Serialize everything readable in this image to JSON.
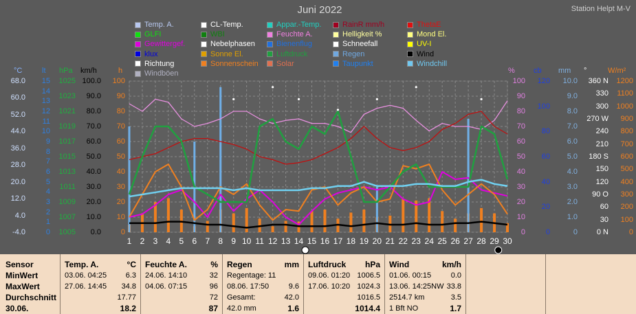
{
  "header": {
    "title": "Juni 2022",
    "station": "Station Helpt M-V"
  },
  "legend": [
    {
      "label": "Temp. A.",
      "color": "#b8c8f0"
    },
    {
      "label": "CL-Temp.",
      "color": "#ffffff"
    },
    {
      "label": "Appar.-Temp.",
      "color": "#20d0c0"
    },
    {
      "label": "RainR mm/h",
      "color": "#a00020"
    },
    {
      "label": "ThetaE",
      "color": "#e01010"
    },
    {
      "label": "GLFI",
      "color": "#10e010"
    },
    {
      "label": "WBI",
      "color": "#108010"
    },
    {
      "label": "Feuchte A.",
      "color": "#f080e0"
    },
    {
      "label": "Helligkeit %",
      "color": "#ffffa0"
    },
    {
      "label": "Mond El.",
      "color": "#ffff80"
    },
    {
      "label": "Gewittergef.",
      "color": "#e000e0"
    },
    {
      "label": "Nebelphasen",
      "color": "#ffffff"
    },
    {
      "label": "Bienenflug",
      "color": "#2070e0"
    },
    {
      "label": "Schneefall",
      "color": "#ffffff"
    },
    {
      "label": "UV-I",
      "color": "#ffff00"
    },
    {
      "label": "klux",
      "color": "#0000e0"
    },
    {
      "label": "Sonne El.",
      "color": "#e0a000"
    },
    {
      "label": "Luftdruck",
      "color": "#20a040"
    },
    {
      "label": "Regen",
      "color": "#70a8e0"
    },
    {
      "label": "Wind",
      "color": "#000000"
    },
    {
      "label": "Richtung",
      "color": "#ffffff"
    },
    {
      "label": "Sonnenschein",
      "color": "#f08020"
    },
    {
      "label": "Solar",
      "color": "#e07050"
    },
    {
      "label": "Taupunkt",
      "color": "#2080f0"
    },
    {
      "label": "Windchill",
      "color": "#70c8f0"
    },
    {
      "label": "Windböen",
      "color": "#b0b0c0"
    }
  ],
  "axes": {
    "units": [
      "°C",
      "lt",
      "hPa",
      "km/h",
      "h",
      "%",
      "cb",
      "mm",
      "°",
      "W/m²"
    ],
    "temp": [
      "68.0",
      "60.0",
      "52.0",
      "44.0",
      "36.0",
      "28.0",
      "20.0",
      "12.0",
      "4.0",
      "-4.0"
    ],
    "lt": [
      "15",
      "14",
      "13",
      "12",
      "11",
      "10",
      "9",
      "8",
      "7",
      "6",
      "5",
      "4",
      "3",
      "2",
      "1",
      "0"
    ],
    "hpa": [
      "1025",
      "1023",
      "1021",
      "1019",
      "1017",
      "1015",
      "1013",
      "1011",
      "1009",
      "1007",
      "1005"
    ],
    "kmh": [
      "100.0",
      "90.0",
      "80.0",
      "70.0",
      "60.0",
      "50.0",
      "40.0",
      "30.0",
      "20.0",
      "10.0",
      "0.0"
    ],
    "h": [
      "100",
      "90",
      "80",
      "70",
      "60",
      "50",
      "40",
      "30",
      "20",
      "10",
      "0"
    ],
    "pct": [
      "100",
      "90",
      "80",
      "70",
      "60",
      "50",
      "40",
      "30",
      "20",
      "10",
      "0"
    ],
    "cb": [
      "120",
      "100",
      "80",
      "60",
      "40",
      "20",
      "0"
    ],
    "mm": [
      "10.0",
      "9.0",
      "8.0",
      "7.0",
      "6.0",
      "5.0",
      "4.0",
      "3.0",
      "2.0",
      "1.0",
      "0"
    ],
    "deg": [
      "360 N",
      "330",
      "300",
      "270 W",
      "240",
      "210",
      "180 S",
      "150",
      "120",
      "90  O",
      "60",
      "30",
      "0    N"
    ],
    "wm2": [
      "1200",
      "1100",
      "1000",
      "900",
      "800",
      "700",
      "600",
      "500",
      "400",
      "300",
      "200",
      "100",
      "0"
    ]
  },
  "chart_data": {
    "type": "line",
    "x": [
      1,
      2,
      3,
      4,
      5,
      6,
      7,
      8,
      9,
      10,
      11,
      12,
      13,
      14,
      15,
      16,
      17,
      18,
      19,
      20,
      21,
      22,
      23,
      24,
      25,
      26,
      27,
      28,
      29,
      30
    ],
    "series": [
      {
        "name": "Feuchte A.",
        "color": "#e890e0",
        "values": [
          85,
          80,
          88,
          86,
          75,
          70,
          72,
          75,
          80,
          80,
          75,
          72,
          74,
          75,
          72,
          72,
          70,
          66,
          78,
          82,
          84,
          82,
          74,
          67,
          72,
          70,
          70,
          68,
          74,
          87
        ]
      },
      {
        "name": "Luftdruck",
        "color": "#20a040",
        "values": [
          1010,
          1015,
          1019,
          1019,
          1017,
          1011,
          1010,
          1009,
          1009,
          1009,
          1019,
          1020,
          1017,
          1016,
          1019,
          1018,
          1021,
          1015,
          1009,
          1009,
          1011,
          1013,
          1014,
          1011,
          1011,
          1011,
          1011,
          1019,
          1018,
          1012
        ]
      },
      {
        "name": "ThetaE",
        "color": "#c01010",
        "values": [
          48,
          50,
          52,
          56,
          60,
          62,
          62,
          60,
          58,
          55,
          50,
          48,
          45,
          46,
          48,
          52,
          56,
          62,
          70,
          62,
          56,
          54,
          56,
          60,
          68,
          72,
          78,
          80,
          70,
          65
        ]
      },
      {
        "name": "Temp. A.",
        "color": "#70d0f0",
        "values": [
          13,
          14,
          15,
          16,
          17,
          17,
          17,
          17,
          16,
          17,
          16,
          16,
          16,
          16,
          17,
          17,
          18,
          18,
          20,
          18,
          18,
          18,
          19,
          19,
          18,
          18,
          20,
          21,
          19,
          18
        ]
      },
      {
        "name": "Wind",
        "color": "#000000",
        "values": [
          6,
          6,
          6,
          7,
          7,
          6,
          5,
          5,
          4,
          3,
          4,
          5,
          5,
          4,
          4,
          4,
          5,
          4,
          5,
          6,
          5,
          5,
          6,
          5,
          5,
          6,
          6,
          7,
          6,
          5
        ]
      },
      {
        "name": "Gewittergef.",
        "color": "#e000e0",
        "values": [
          10,
          12,
          18,
          25,
          28,
          20,
          10,
          25,
          14,
          22,
          28,
          20,
          10,
          5,
          14,
          22,
          26,
          28,
          30,
          28,
          30,
          22,
          18,
          20,
          40,
          35,
          36,
          28,
          26,
          24
        ]
      },
      {
        "name": "Sonnenschein",
        "color": "#f08020",
        "values": [
          10,
          25,
          40,
          45,
          30,
          8,
          15,
          30,
          25,
          32,
          18,
          8,
          15,
          14,
          28,
          30,
          18,
          26,
          30,
          20,
          22,
          44,
          42,
          45,
          28,
          18,
          25,
          32,
          25,
          12
        ]
      }
    ]
  },
  "stats": {
    "sensor": {
      "title": "Sensor",
      "rows": [
        "MinWert",
        "MaxWert",
        "Durchschnitt",
        "30.06."
      ]
    },
    "temp": {
      "title": "Temp. A.",
      "unit": "°C",
      "min_date": "03.06.  04:25",
      "min_val": "6.3",
      "max_date": "27.06.  14:45",
      "max_val": "34.8",
      "avg": "17.77",
      "today": "18.2"
    },
    "hum": {
      "title": "Feuchte A.",
      "unit": "%",
      "min_date": "24.06.  14:10",
      "min_val": "32",
      "max_date": "04.06.  07:15",
      "max_val": "96",
      "avg": "72",
      "today": "87"
    },
    "rain": {
      "title": "Regen",
      "unit": "mm",
      "r1a": "Regentage: 11",
      "r1b": "",
      "r2a": "08.06.  17:50",
      "r2b": "9.6",
      "r3a": "Gesamt:",
      "r3b": "42.0",
      "r4a": "42.0 mm",
      "r4b": "1.6"
    },
    "press": {
      "title": "Luftdruck",
      "unit": "hPa",
      "min_date": "09.06.  01:20",
      "min_val": "1006.5",
      "max_date": "17.06.  10:20",
      "max_val": "1024.3",
      "avg": "1016.5",
      "today": "1014.4"
    },
    "wind": {
      "title": "Wind",
      "unit": "km/h",
      "min_date": "01.06.  00:15",
      "min_val": "0.0",
      "max_date": "13.06.  14:25NW",
      "max_val": "33.8",
      "avg_a": "2514.7 km",
      "avg": "3.5",
      "today_a": "1 Bft NO",
      "today": "1.7"
    }
  }
}
